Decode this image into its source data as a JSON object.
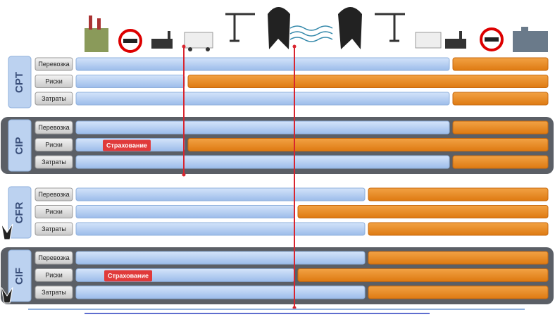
{
  "groups": [
    {
      "label": "CPT",
      "rows": [
        "Перевозка",
        "Риски",
        "Затраты"
      ]
    },
    {
      "label": "CIP",
      "rows": [
        "Перевозка",
        "Риски",
        "Затраты"
      ],
      "note": "Страхование"
    },
    {
      "label": "CFR",
      "rows": [
        "Перевозка",
        "Риски",
        "Затраты"
      ]
    },
    {
      "label": "CIF",
      "rows": [
        "Перевозка",
        "Риски",
        "Затраты"
      ],
      "note": "Страхование"
    }
  ]
}
